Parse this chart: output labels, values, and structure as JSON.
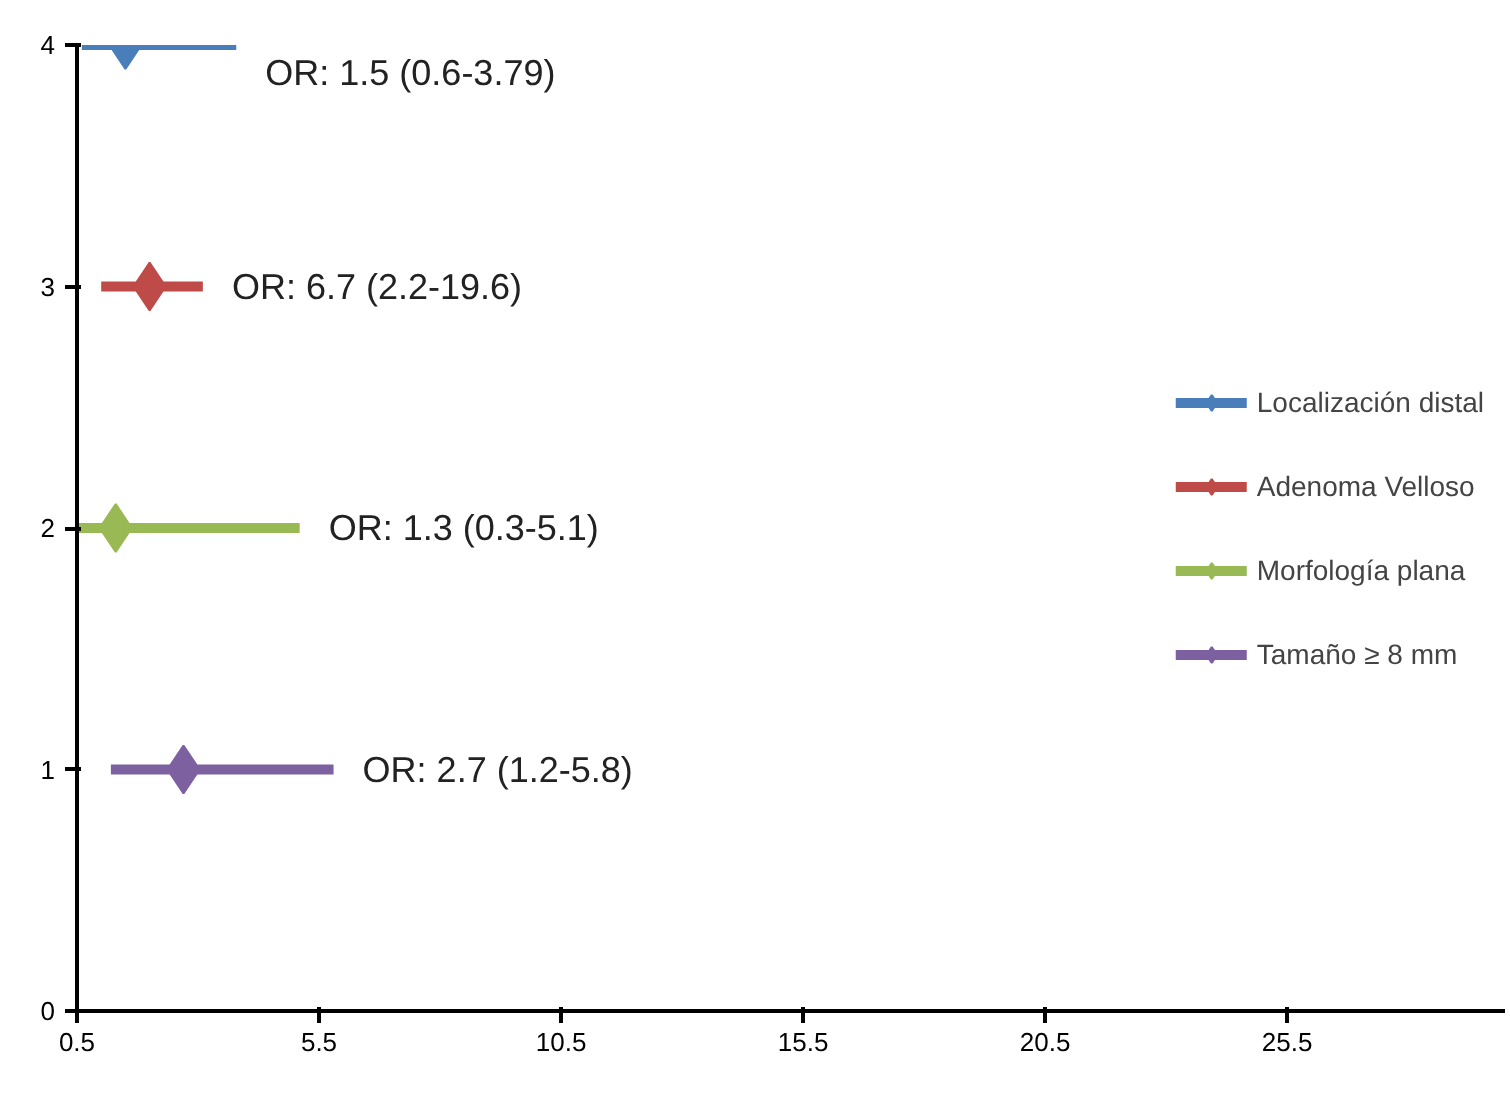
{
  "chart_data": {
    "type": "scatter",
    "marker": "diamond",
    "grid": false,
    "legend": "right",
    "xlim": [
      0.5,
      30
    ],
    "xticks": [
      0.5,
      5.5,
      10.5,
      15.5,
      20.5,
      25.5
    ],
    "ylim": [
      0,
      4
    ],
    "yticks": [
      0,
      1,
      2,
      3,
      4
    ],
    "series": [
      {
        "name": "Localización distal",
        "color": "#4a7ebb",
        "x": [
          1.5
        ],
        "values": [
          4
        ],
        "xerrors": [
          [
            0.6,
            3.79
          ]
        ]
      },
      {
        "name": "Adenoma Velloso",
        "color": "#be4b48",
        "x": [
          2.0
        ],
        "values": [
          3
        ],
        "xerrors": [
          [
            1.0,
            3.1
          ]
        ]
      },
      {
        "name": "Morfología plana",
        "color": "#98b954",
        "x": [
          1.3
        ],
        "values": [
          2
        ],
        "xerrors": [
          [
            0.5,
            5.1
          ]
        ]
      },
      {
        "name": "Tamaño ≥ 8 mm",
        "color": "#7d60a0",
        "x": [
          2.7
        ],
        "values": [
          1
        ],
        "xerrors": [
          [
            1.2,
            5.8
          ]
        ]
      }
    ],
    "annotations": [
      "OR: 1.5 (0.6-3.79)",
      "OR: 6.7 (2.2-19.6)",
      "OR: 1.3 (0.3-5.1)",
      "OR: 2.7 (1.2-5.8)"
    ]
  }
}
